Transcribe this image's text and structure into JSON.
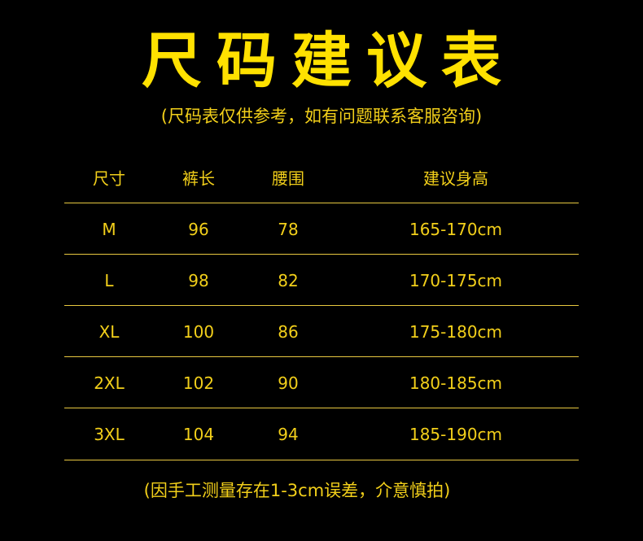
{
  "title": "尺码建议表",
  "subtitle": "(尺码表仅供参考，如有问题联系客服咨询)",
  "table": {
    "headers": [
      "尺寸",
      "裤长",
      "腰围",
      "建议身高"
    ],
    "rows": [
      [
        "M",
        "96",
        "78",
        "165-170cm"
      ],
      [
        "L",
        "98",
        "82",
        "170-175cm"
      ],
      [
        "XL",
        "100",
        "86",
        "175-180cm"
      ],
      [
        "2XL",
        "102",
        "90",
        "180-185cm"
      ],
      [
        "3XL",
        "104",
        "94",
        "185-190cm"
      ]
    ]
  },
  "footer": "(因手工测量存在1-3cm误差，介意慎拍)",
  "colors": {
    "background": "#000000",
    "title": "#ffe100",
    "text": "#f2cf1a",
    "rule": "#e8c840"
  }
}
